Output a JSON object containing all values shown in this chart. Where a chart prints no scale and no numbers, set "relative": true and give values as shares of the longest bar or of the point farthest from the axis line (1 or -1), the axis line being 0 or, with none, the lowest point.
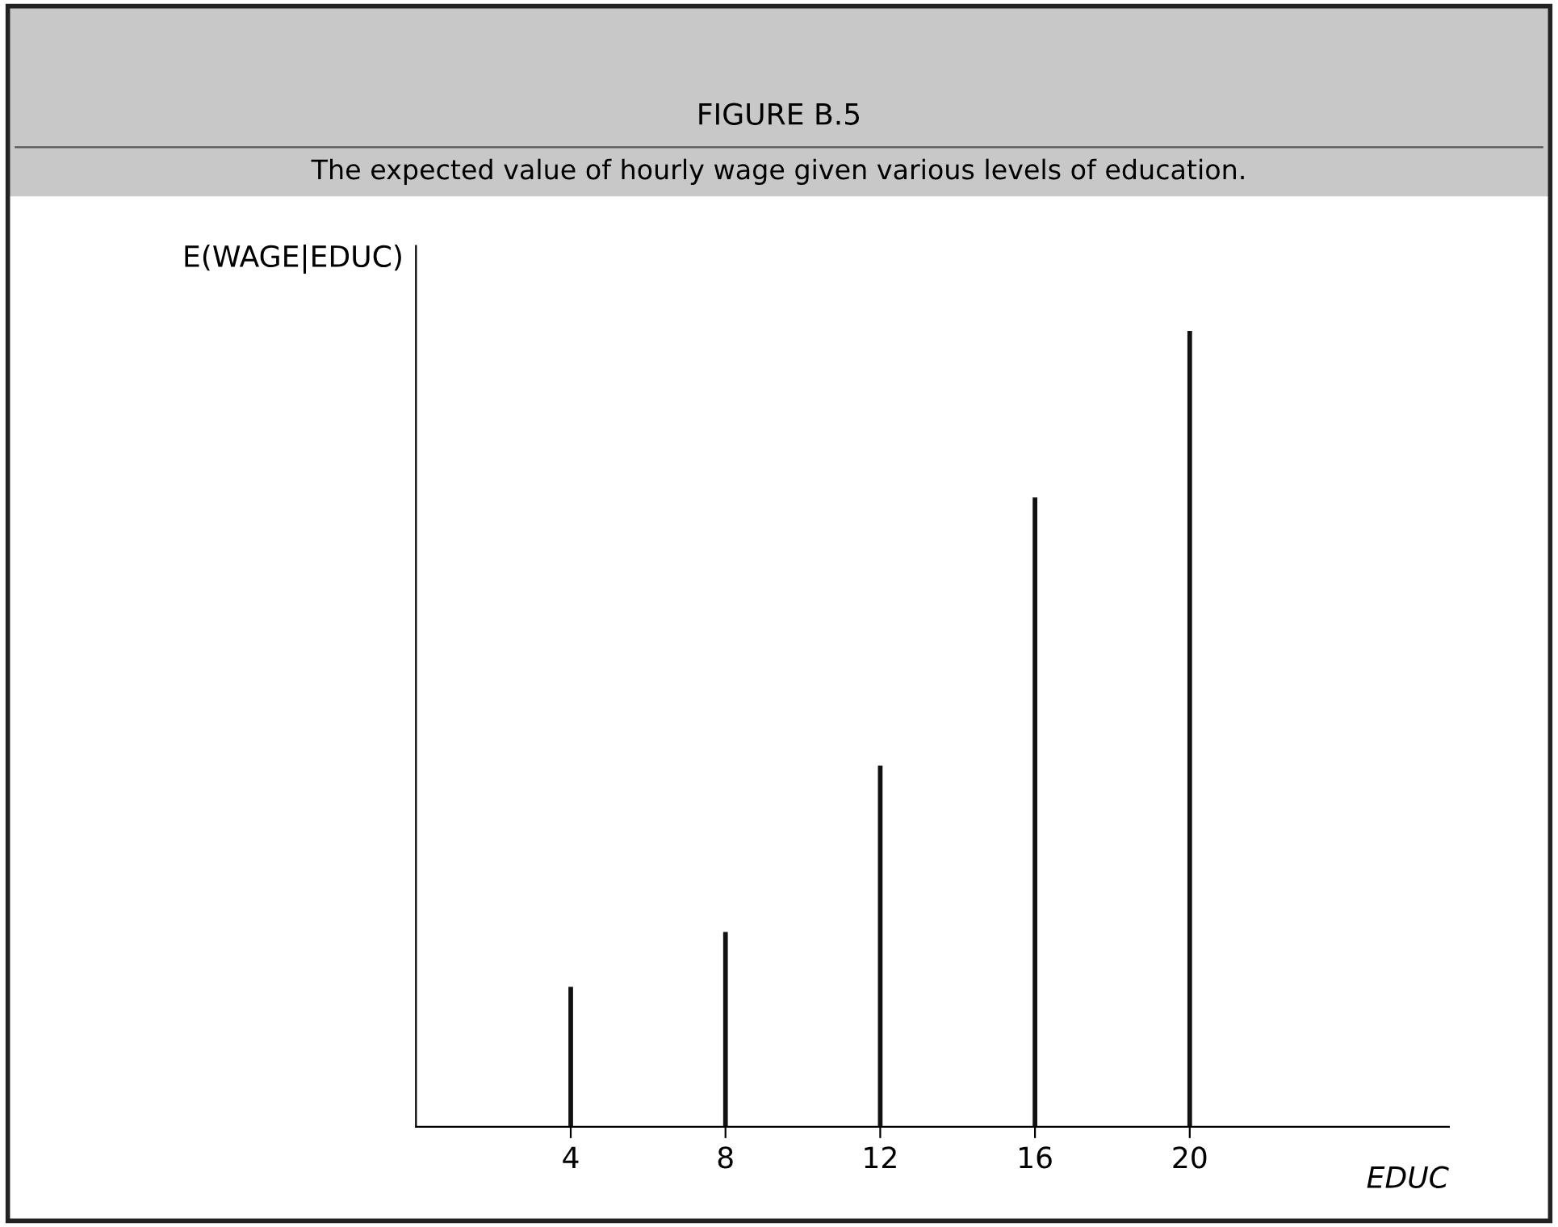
{
  "chart_data": {
    "type": "bar",
    "title": "FIGURE B.5",
    "subtitle": "The expected value of hourly wage given various levels of education.",
    "xlabel": "EDUC",
    "ylabel": "E(WAGE|EDUC)",
    "x": [
      4,
      8,
      12,
      16,
      20
    ],
    "values": [
      0.176,
      0.245,
      0.454,
      0.791,
      1.0
    ],
    "color": "#111111",
    "relative": true,
    "xlim": [
      0,
      26.7
    ],
    "xticks": [
      4,
      8,
      12,
      16,
      20
    ],
    "tick_labels": "x",
    "grid": false,
    "legend": false
  }
}
